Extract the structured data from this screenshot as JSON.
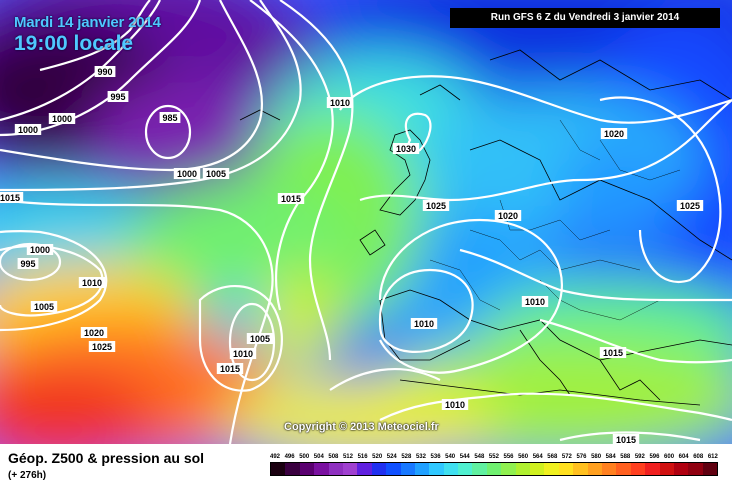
{
  "header": {
    "date_line": "Mardi 14 janvier 2014",
    "time_line": "19:00 locale",
    "run_info": "Run GFS 6 Z du Vendredi 3 janvier 2014"
  },
  "copyright": "Copyright © 2013 Meteociel.fr",
  "footer": {
    "title": "Géop. Z500 & pression au sol",
    "lead_time": "(+ 276h)"
  },
  "legend_scale": [
    "492",
    "496",
    "500",
    "504",
    "508",
    "512",
    "516",
    "520",
    "524",
    "528",
    "532",
    "536",
    "540",
    "544",
    "548",
    "552",
    "556",
    "560",
    "564",
    "568",
    "572",
    "576",
    "580",
    "584",
    "588",
    "592",
    "596",
    "600",
    "604",
    "608",
    "612"
  ],
  "legend_colors": [
    "#1a0010",
    "#3a0040",
    "#5a0070",
    "#7a10a0",
    "#8f30c0",
    "#a040d0",
    "#6020e0",
    "#2030f0",
    "#1050ff",
    "#1878ff",
    "#20a0ff",
    "#30c8ff",
    "#40e0f0",
    "#50f0d0",
    "#60f0a0",
    "#70f070",
    "#90f050",
    "#b0f030",
    "#d0f020",
    "#f0f020",
    "#ffe020",
    "#ffc020",
    "#ffa020",
    "#ff8020",
    "#ff6020",
    "#ff4020",
    "#f02020",
    "#d01010",
    "#b00010",
    "#900010",
    "#600010"
  ],
  "isobars": [
    {
      "label": "1000"
    },
    {
      "label": "990"
    },
    {
      "label": "995"
    },
    {
      "label": "1000"
    },
    {
      "label": "985"
    },
    {
      "label": "1000"
    },
    {
      "label": "1005"
    },
    {
      "label": "1010"
    },
    {
      "label": "1030"
    },
    {
      "label": "1015"
    },
    {
      "label": "1025"
    },
    {
      "label": "1020"
    },
    {
      "label": "1020"
    },
    {
      "label": "1025"
    },
    {
      "label": "1015"
    },
    {
      "label": "1000"
    },
    {
      "label": "995"
    },
    {
      "label": "1010"
    },
    {
      "label": "1005"
    },
    {
      "label": "1020"
    },
    {
      "label": "1025"
    },
    {
      "label": "1005"
    },
    {
      "label": "1010"
    },
    {
      "label": "1015"
    },
    {
      "label": "1010"
    },
    {
      "label": "1010"
    },
    {
      "label": "1015"
    },
    {
      "label": "1010"
    },
    {
      "label": "1015"
    }
  ]
}
